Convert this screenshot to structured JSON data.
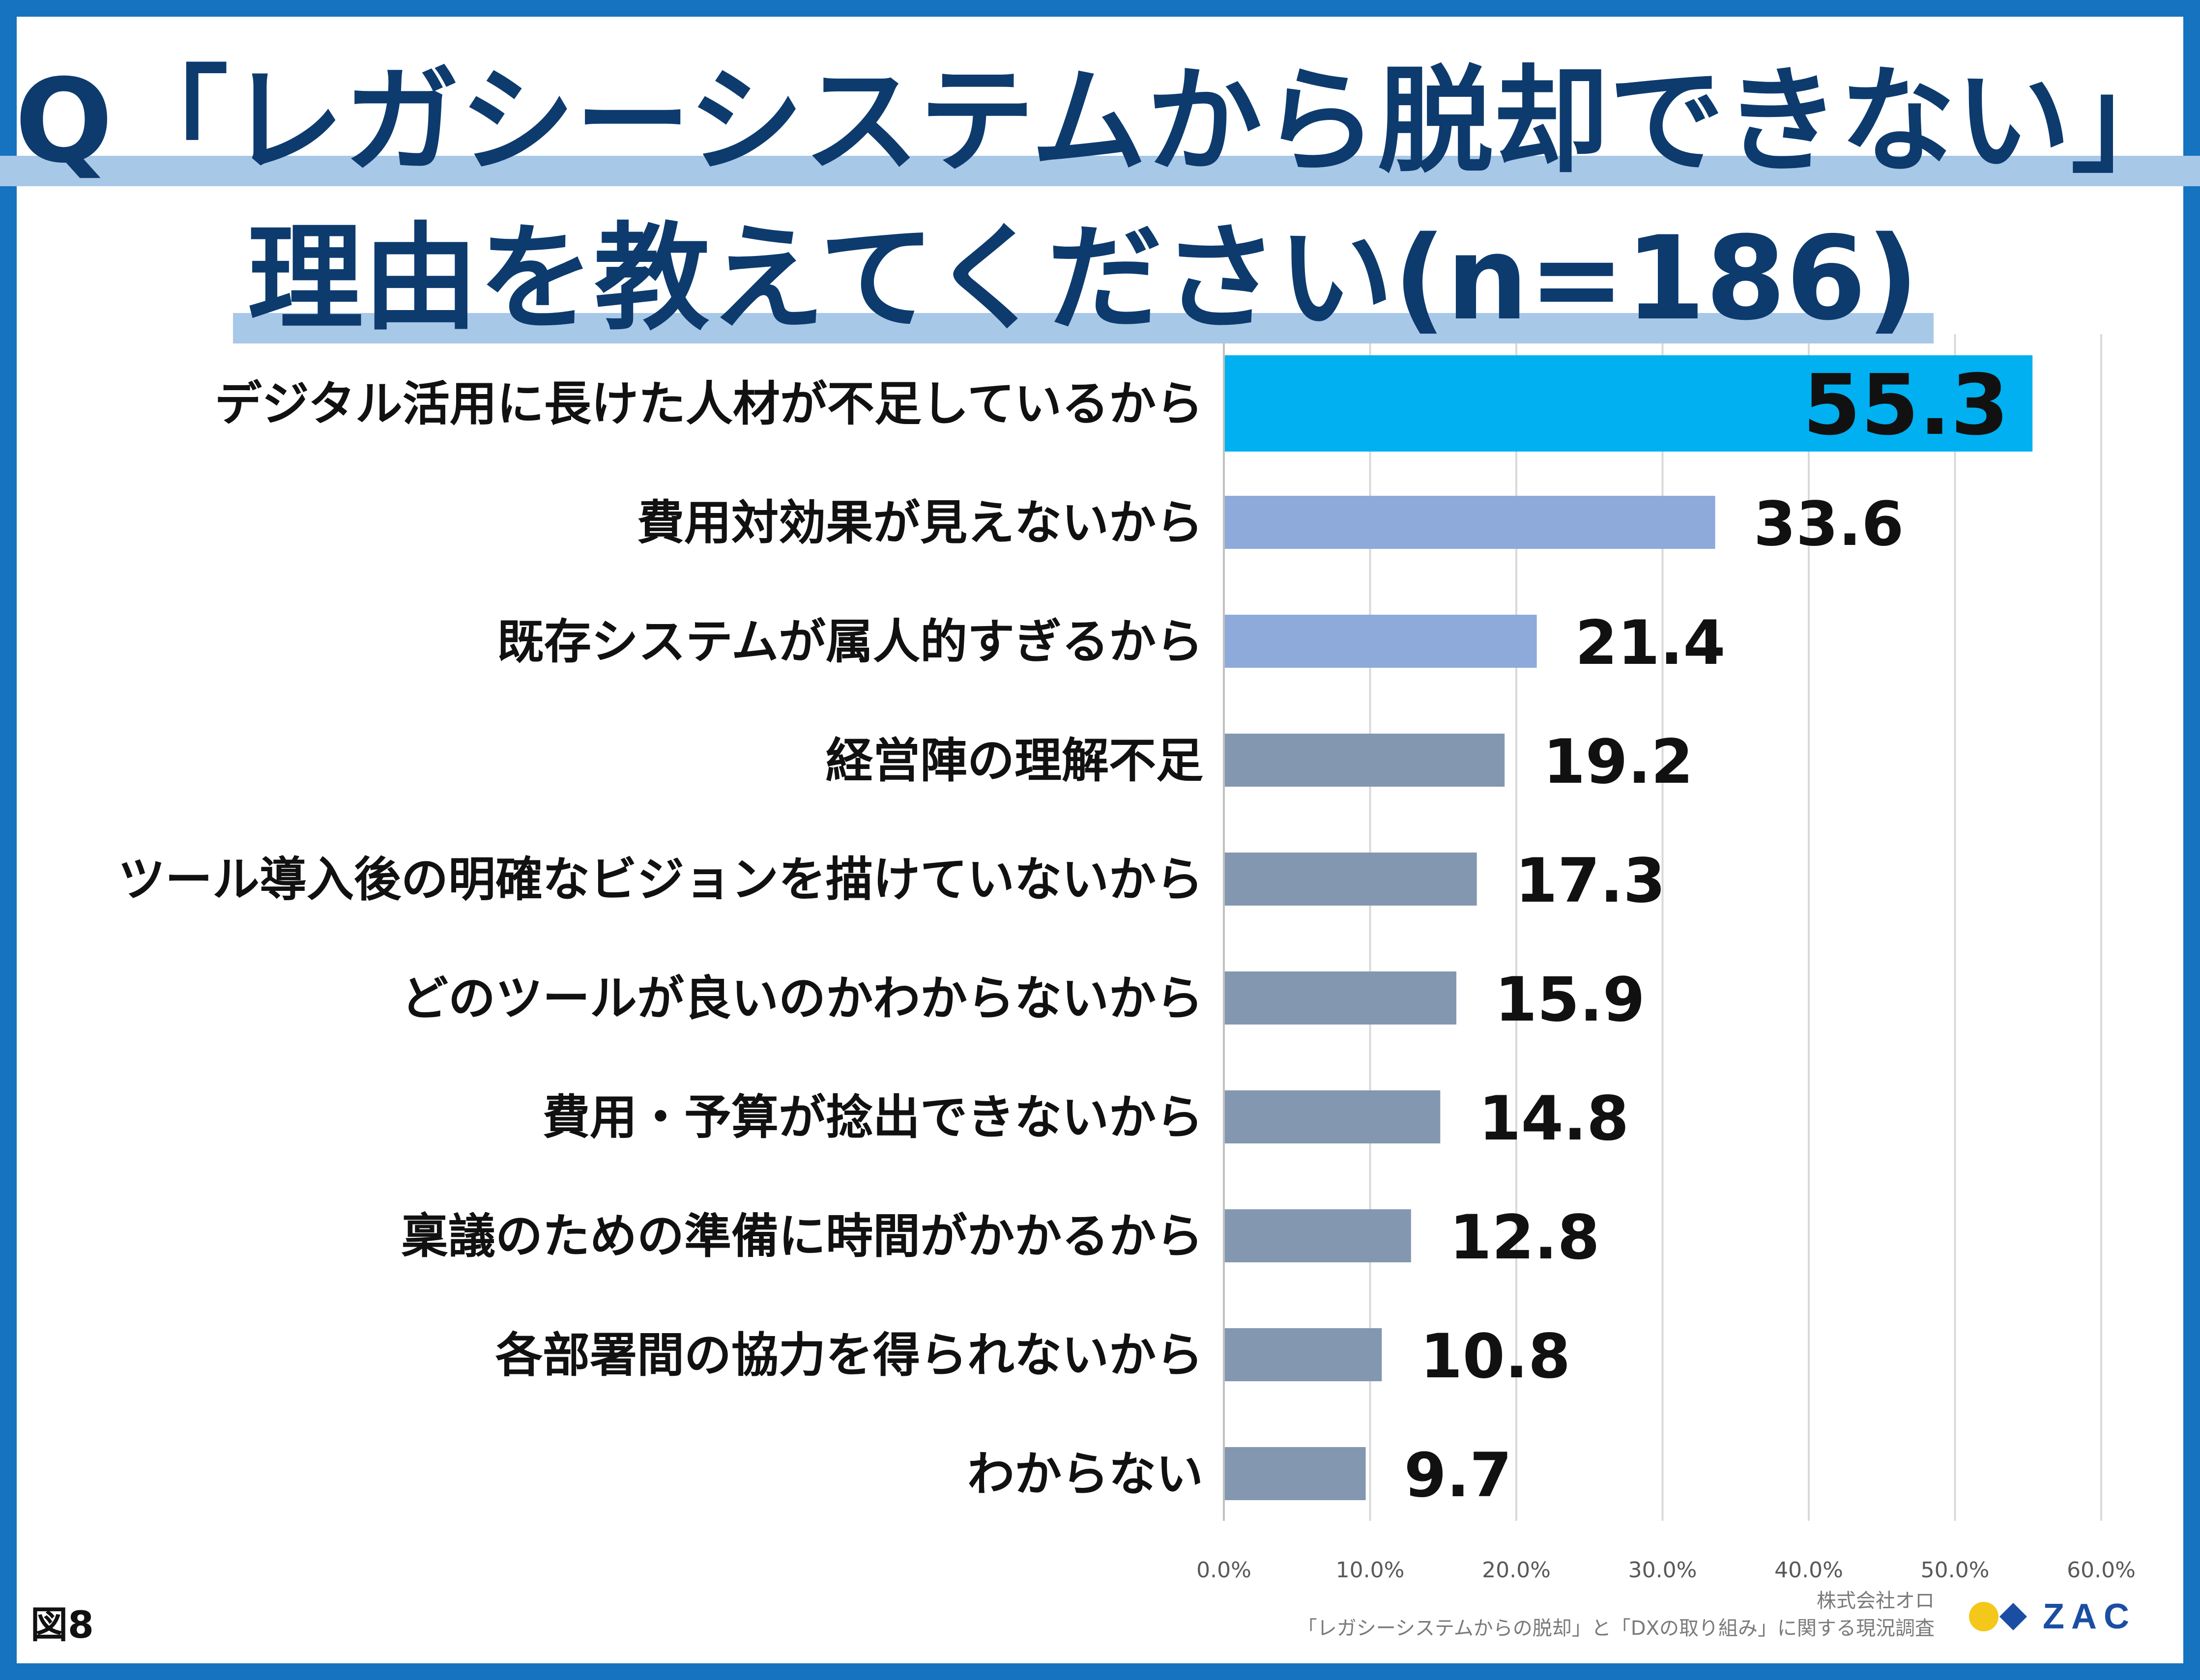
{
  "title": {
    "line1": "Q「レガシーシステムから脱却できない」",
    "line2": "理由を教えてください(n=186)"
  },
  "figure_label": "図8",
  "source": {
    "company": "株式会社オロ",
    "survey": "「レガシーシステムからの脱却」と「DXの取り組み」に関する現況調査"
  },
  "logo": {
    "text": "ZAC",
    "colors": [
      "#f4c81a",
      "#1b4ea3"
    ]
  },
  "colors": {
    "highlight": "#00b0f0",
    "secondary": "#8eaadb",
    "other": "#8497b0",
    "grid": "#d9d9d9",
    "text": "#111111"
  },
  "chart_data": {
    "type": "bar",
    "orientation": "horizontal",
    "categories": [
      "デジタル活用に長けた人材が不足しているから",
      "費用対効果が見えないから",
      "既存システムが属人的すぎるから",
      "経営陣の理解不足",
      "ツール導入後の明確なビジョンを描けていないから",
      "どのツールが良いのかわからないから",
      "費用・予算が捻出できないから",
      "稟議のための準備に時間がかかるから",
      "各部署間の協力を得られないから",
      "わからない"
    ],
    "values": [
      55.3,
      33.6,
      21.4,
      19.2,
      17.3,
      15.9,
      14.8,
      12.8,
      10.8,
      9.7
    ],
    "data_labels": [
      "55.3",
      "33.6",
      "21.4",
      "19.2",
      "17.3",
      "15.9",
      "14.8",
      "12.8",
      "10.8",
      "9.7"
    ],
    "bar_color_groups": [
      "highlight",
      "secondary",
      "secondary",
      "other",
      "other",
      "other",
      "other",
      "other",
      "other",
      "other"
    ],
    "xlim": [
      0,
      60
    ],
    "xticks": [
      0,
      10,
      20,
      30,
      40,
      50,
      60
    ],
    "xtick_labels": [
      "0.0%",
      "10.0%",
      "20.0%",
      "30.0%",
      "40.0%",
      "50.0%",
      "60.0%"
    ],
    "grid": true,
    "legend": "none"
  }
}
